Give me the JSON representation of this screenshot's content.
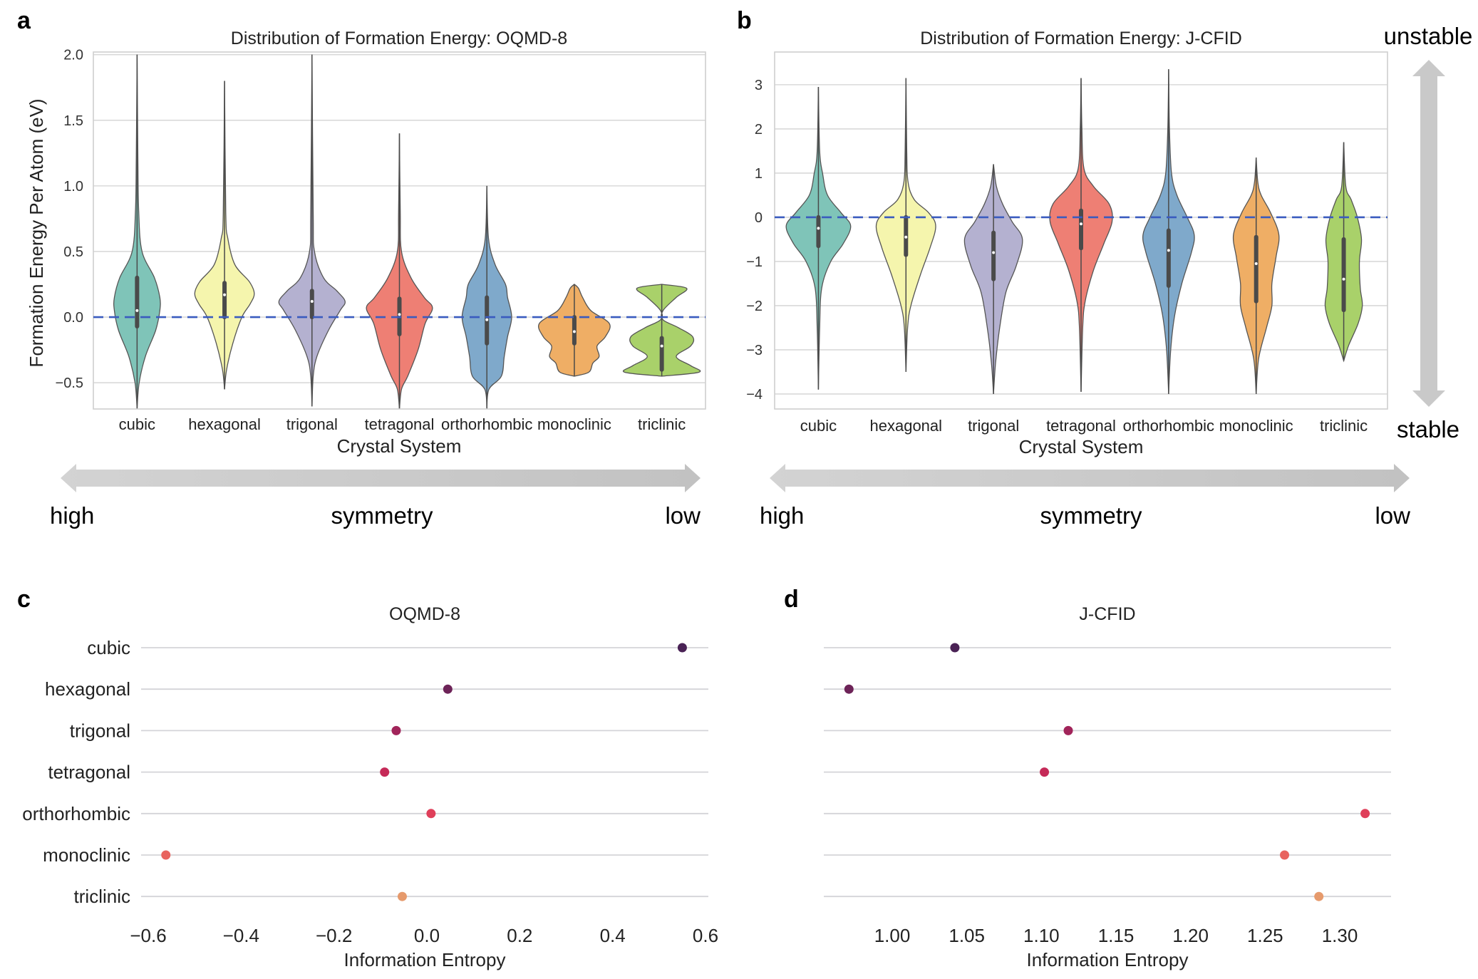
{
  "figure": {
    "panels": {
      "a": {
        "letter": "a"
      },
      "b": {
        "letter": "b"
      },
      "c": {
        "letter": "c"
      },
      "d": {
        "letter": "d"
      }
    },
    "symmetry_arrow": {
      "left": "high",
      "middle": "symmetry",
      "right": "low"
    },
    "stability_arrow": {
      "top": "unstable",
      "bottom": "stable"
    }
  },
  "chart_data": [
    {
      "id": "a",
      "type": "violin",
      "title": "Distribution of Formation Energy: OQMD-8",
      "xlabel": "Crystal System",
      "ylabel": "Formation Energy Per Atom (eV)",
      "ylim": [
        -0.7,
        2.02
      ],
      "yticks": [
        -0.5,
        0.0,
        0.5,
        1.0,
        1.5,
        2.0
      ],
      "ytick_labels": [
        "−0.5",
        "0.0",
        "0.5",
        "1.0",
        "1.5",
        "2.0"
      ],
      "grid": true,
      "reference_line": {
        "y": 0,
        "style": "dashed",
        "color": "#3a5bbf"
      },
      "categories": [
        "cubic",
        "hexagonal",
        "trigonal",
        "tetragonal",
        "orthorhombic",
        "monoclinic",
        "triclinic"
      ],
      "colors": [
        "#7fc4b8",
        "#f5f5ad",
        "#b4b1d0",
        "#ee7f74",
        "#7fa9cb",
        "#efae65",
        "#a9d16a"
      ],
      "series": [
        {
          "name": "cubic",
          "min": -0.7,
          "max": 2.0,
          "q1": -0.07,
          "median": 0.05,
          "q3": 0.3,
          "density": [
            [
              -0.7,
              0.0
            ],
            [
              -0.5,
              0.05
            ],
            [
              -0.3,
              0.2
            ],
            [
              -0.1,
              0.45
            ],
            [
              0.05,
              0.55
            ],
            [
              0.15,
              0.55
            ],
            [
              0.3,
              0.42
            ],
            [
              0.5,
              0.12
            ],
            [
              0.8,
              0.04
            ],
            [
              1.2,
              0.02
            ],
            [
              2.0,
              0.0
            ]
          ]
        },
        {
          "name": "hexagonal",
          "min": -0.55,
          "max": 1.8,
          "q1": 0.0,
          "median": 0.17,
          "q3": 0.26,
          "density": [
            [
              -0.55,
              0.0
            ],
            [
              -0.4,
              0.05
            ],
            [
              -0.2,
              0.2
            ],
            [
              0.0,
              0.42
            ],
            [
              0.1,
              0.62
            ],
            [
              0.18,
              0.72
            ],
            [
              0.27,
              0.6
            ],
            [
              0.4,
              0.25
            ],
            [
              0.6,
              0.08
            ],
            [
              0.8,
              0.03
            ],
            [
              1.8,
              0.0
            ]
          ]
        },
        {
          "name": "trigonal",
          "min": -0.68,
          "max": 2.0,
          "q1": 0.0,
          "median": 0.12,
          "q3": 0.2,
          "density": [
            [
              -0.68,
              0.0
            ],
            [
              -0.45,
              0.03
            ],
            [
              -0.3,
              0.12
            ],
            [
              -0.1,
              0.4
            ],
            [
              0.05,
              0.68
            ],
            [
              0.12,
              0.8
            ],
            [
              0.2,
              0.6
            ],
            [
              0.3,
              0.28
            ],
            [
              0.5,
              0.06
            ],
            [
              0.8,
              0.03
            ],
            [
              2.0,
              0.0
            ]
          ]
        },
        {
          "name": "tetragonal",
          "min": -0.7,
          "max": 1.4,
          "q1": -0.13,
          "median": 0.02,
          "q3": 0.14,
          "density": [
            [
              -0.7,
              0.0
            ],
            [
              -0.55,
              0.05
            ],
            [
              -0.45,
              0.2
            ],
            [
              -0.25,
              0.45
            ],
            [
              -0.05,
              0.62
            ],
            [
              0.07,
              0.8
            ],
            [
              0.15,
              0.6
            ],
            [
              0.3,
              0.28
            ],
            [
              0.5,
              0.05
            ],
            [
              0.8,
              0.02
            ],
            [
              1.4,
              0.0
            ]
          ]
        },
        {
          "name": "orthorhombic",
          "min": -0.7,
          "max": 1.0,
          "q1": -0.2,
          "median": -0.02,
          "q3": 0.15,
          "density": [
            [
              -0.7,
              0.0
            ],
            [
              -0.55,
              0.05
            ],
            [
              -0.45,
              0.35
            ],
            [
              -0.3,
              0.42
            ],
            [
              -0.15,
              0.5
            ],
            [
              0.0,
              0.6
            ],
            [
              0.15,
              0.5
            ],
            [
              0.25,
              0.45
            ],
            [
              0.4,
              0.2
            ],
            [
              0.6,
              0.04
            ],
            [
              1.0,
              0.0
            ]
          ]
        },
        {
          "name": "monoclinic",
          "min": -0.45,
          "max": 0.25,
          "q1": -0.2,
          "median": -0.11,
          "q3": 0.0,
          "density": [
            [
              -0.45,
              0.0
            ],
            [
              -0.42,
              0.35
            ],
            [
              -0.35,
              0.45
            ],
            [
              -0.3,
              0.6
            ],
            [
              -0.22,
              0.55
            ],
            [
              -0.15,
              0.75
            ],
            [
              -0.05,
              0.85
            ],
            [
              0.05,
              0.4
            ],
            [
              0.15,
              0.2
            ],
            [
              0.22,
              0.1
            ],
            [
              0.25,
              0.0
            ]
          ]
        },
        {
          "name": "triclinic",
          "min": -0.45,
          "max": 0.25,
          "q1": -0.4,
          "median": -0.22,
          "q3": -0.16,
          "density": [
            [
              -0.45,
              0.0
            ],
            [
              -0.42,
              0.9
            ],
            [
              -0.37,
              0.7
            ],
            [
              -0.3,
              0.35
            ],
            [
              -0.22,
              0.7
            ],
            [
              -0.15,
              0.75
            ],
            [
              -0.08,
              0.4
            ],
            [
              -0.02,
              0.03
            ],
            [
              0.05,
              0.03
            ],
            [
              0.15,
              0.35
            ],
            [
              0.22,
              0.6
            ],
            [
              0.25,
              0.0
            ]
          ]
        }
      ]
    },
    {
      "id": "b",
      "type": "violin",
      "title": "Distribution of Formation Energy: J-CFID",
      "xlabel": "Crystal System",
      "ylabel": "",
      "ylim": [
        -4.34,
        3.74
      ],
      "yticks": [
        -4,
        -3,
        -2,
        -1,
        0,
        1,
        2,
        3
      ],
      "ytick_labels": [
        "−4",
        "−3",
        "−2",
        "−1",
        "0",
        "1",
        "2",
        "3"
      ],
      "grid": true,
      "reference_line": {
        "y": 0,
        "style": "dashed",
        "color": "#3a5bbf"
      },
      "categories": [
        "cubic",
        "hexagonal",
        "trigonal",
        "tetragonal",
        "orthorhombic",
        "monoclinic",
        "triclinic"
      ],
      "colors": [
        "#7fc4b8",
        "#f5f5ad",
        "#b4b1d0",
        "#ee7f74",
        "#7fa9cb",
        "#efae65",
        "#a9d16a"
      ],
      "series": [
        {
          "name": "cubic",
          "min": -3.9,
          "max": 2.95,
          "q1": -0.65,
          "median": -0.25,
          "q3": 0.0,
          "density": [
            [
              -3.9,
              0.0
            ],
            [
              -2.5,
              0.03
            ],
            [
              -1.6,
              0.08
            ],
            [
              -1.0,
              0.3
            ],
            [
              -0.6,
              0.6
            ],
            [
              -0.2,
              0.78
            ],
            [
              0.1,
              0.55
            ],
            [
              0.5,
              0.22
            ],
            [
              1.0,
              0.1
            ],
            [
              1.5,
              0.03
            ],
            [
              2.95,
              0.0
            ]
          ]
        },
        {
          "name": "hexagonal",
          "min": -3.5,
          "max": 3.15,
          "q1": -0.85,
          "median": -0.45,
          "q3": 0.0,
          "density": [
            [
              -3.5,
              0.0
            ],
            [
              -2.5,
              0.04
            ],
            [
              -2.0,
              0.12
            ],
            [
              -1.3,
              0.35
            ],
            [
              -0.7,
              0.58
            ],
            [
              -0.2,
              0.72
            ],
            [
              0.1,
              0.55
            ],
            [
              0.4,
              0.2
            ],
            [
              0.8,
              0.05
            ],
            [
              1.5,
              0.02
            ],
            [
              3.15,
              0.0
            ]
          ]
        },
        {
          "name": "trigonal",
          "min": -4.0,
          "max": 1.2,
          "q1": -1.4,
          "median": -0.8,
          "q3": -0.35,
          "density": [
            [
              -4.0,
              0.0
            ],
            [
              -3.3,
              0.05
            ],
            [
              -2.5,
              0.15
            ],
            [
              -1.7,
              0.3
            ],
            [
              -1.1,
              0.55
            ],
            [
              -0.5,
              0.7
            ],
            [
              -0.1,
              0.45
            ],
            [
              0.3,
              0.22
            ],
            [
              0.7,
              0.07
            ],
            [
              1.2,
              0.0
            ]
          ]
        },
        {
          "name": "tetragonal",
          "min": -3.95,
          "max": 3.15,
          "q1": -0.7,
          "median": -0.15,
          "q3": 0.15,
          "density": [
            [
              -3.95,
              0.0
            ],
            [
              -2.5,
              0.04
            ],
            [
              -1.9,
              0.1
            ],
            [
              -1.2,
              0.3
            ],
            [
              -0.6,
              0.55
            ],
            [
              -0.1,
              0.75
            ],
            [
              0.3,
              0.68
            ],
            [
              0.7,
              0.3
            ],
            [
              1.1,
              0.07
            ],
            [
              2.0,
              0.02
            ],
            [
              3.15,
              0.0
            ]
          ]
        },
        {
          "name": "orthorhombic",
          "min": -4.0,
          "max": 3.35,
          "q1": -1.55,
          "median": -0.75,
          "q3": -0.3,
          "density": [
            [
              -4.0,
              0.0
            ],
            [
              -3.0,
              0.05
            ],
            [
              -2.2,
              0.15
            ],
            [
              -1.5,
              0.32
            ],
            [
              -0.8,
              0.55
            ],
            [
              -0.4,
              0.62
            ],
            [
              0.0,
              0.45
            ],
            [
              0.5,
              0.2
            ],
            [
              1.0,
              0.07
            ],
            [
              2.0,
              0.02
            ],
            [
              3.35,
              0.0
            ]
          ]
        },
        {
          "name": "monoclinic",
          "min": -4.0,
          "max": 1.35,
          "q1": -1.9,
          "median": -1.05,
          "q3": -0.45,
          "density": [
            [
              -4.0,
              0.0
            ],
            [
              -3.2,
              0.06
            ],
            [
              -2.5,
              0.25
            ],
            [
              -2.0,
              0.38
            ],
            [
              -1.5,
              0.38
            ],
            [
              -0.9,
              0.48
            ],
            [
              -0.4,
              0.55
            ],
            [
              0.1,
              0.35
            ],
            [
              0.5,
              0.12
            ],
            [
              0.8,
              0.04
            ],
            [
              1.35,
              0.0
            ]
          ]
        },
        {
          "name": "triclinic",
          "min": -3.25,
          "max": 1.7,
          "q1": -2.1,
          "median": -1.4,
          "q3": -0.5,
          "density": [
            [
              -3.25,
              0.0
            ],
            [
              -2.9,
              0.12
            ],
            [
              -2.4,
              0.35
            ],
            [
              -2.0,
              0.45
            ],
            [
              -1.6,
              0.4
            ],
            [
              -1.0,
              0.38
            ],
            [
              -0.5,
              0.43
            ],
            [
              0.0,
              0.33
            ],
            [
              0.4,
              0.18
            ],
            [
              0.7,
              0.05
            ],
            [
              1.7,
              0.0
            ]
          ]
        }
      ]
    },
    {
      "id": "c",
      "type": "scatter",
      "title": "OQMD-8",
      "xlabel": "Information Entropy",
      "ylabel": "",
      "xlim": [
        -0.6,
        0.6
      ],
      "xticks": [
        -0.6,
        -0.4,
        -0.2,
        0.0,
        0.2,
        0.4,
        0.6
      ],
      "xtick_labels": [
        "−0.6",
        "−0.4",
        "−0.2",
        "0.0",
        "0.2",
        "0.4",
        "0.6"
      ],
      "categories": [
        "cubic",
        "hexagonal",
        "trigonal",
        "tetragonal",
        "orthorhombic",
        "monoclinic",
        "triclinic"
      ],
      "values": [
        0.55,
        0.045,
        -0.066,
        -0.091,
        0.009,
        -0.562,
        -0.053
      ],
      "colors": [
        "#4a2255",
        "#6d2358",
        "#a1245a",
        "#c52a58",
        "#df3f5a",
        "#e8645f",
        "#e69a6c"
      ],
      "grid": true
    },
    {
      "id": "d",
      "type": "scatter",
      "title": "J-CFID",
      "xlabel": "Information Entropy",
      "ylabel": "",
      "xlim": [
        0.953,
        1.333
      ],
      "xticks": [
        1.0,
        1.05,
        1.1,
        1.15,
        1.2,
        1.25,
        1.3
      ],
      "xtick_labels": [
        "1.00",
        "1.05",
        "1.10",
        "1.15",
        "1.20",
        "1.25",
        "1.30"
      ],
      "categories": [
        "cubic",
        "hexagonal",
        "trigonal",
        "tetragonal",
        "orthorhombic",
        "monoclinic",
        "triclinic"
      ],
      "values": [
        1.042,
        0.971,
        1.118,
        1.102,
        1.317,
        1.263,
        1.286
      ],
      "colors": [
        "#4a2255",
        "#6d2358",
        "#a1245a",
        "#c52a58",
        "#df3f5a",
        "#e8645f",
        "#e69a6c"
      ],
      "grid": true
    }
  ]
}
